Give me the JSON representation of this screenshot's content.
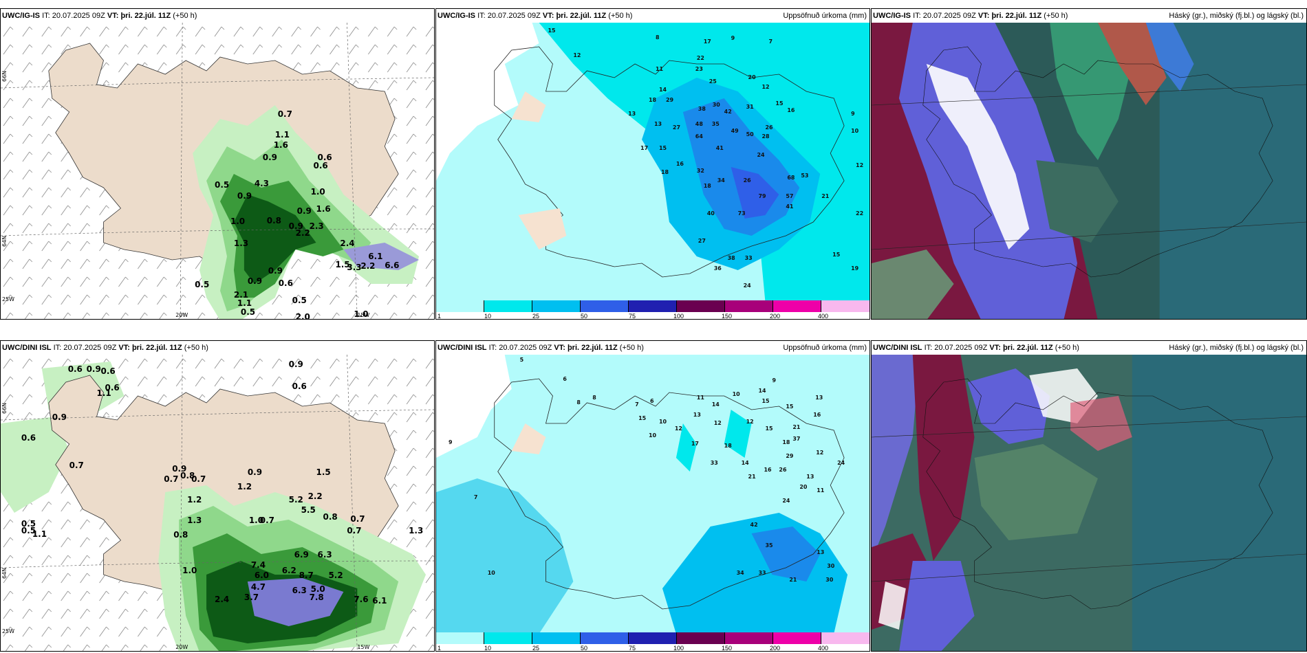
{
  "rows": [
    {
      "model": "UWC/IG-IS",
      "it_label": "IT:",
      "it_value": "20.07.2025 09Z",
      "vt_label": "VT:",
      "vt_value": "þri. 22.júl. 11Z",
      "lead": "(+50 h)"
    },
    {
      "model": "UWC/DINI ISL",
      "it_label": "IT:",
      "it_value": "20.07.2025 09Z",
      "vt_label": "VT:",
      "vt_value": "þri. 22.júl. 11Z",
      "lead": "(+50 h)"
    }
  ],
  "precip_title": "Uppsöfnuð úrkoma (mm)",
  "cloud_title": "Hásky (gr.), miðský (fj.bl.) og lágský (bl.)",
  "cloud_title_exact": "Háský (gr.), miðský (fj.bl.) og lágský (bl.)",
  "axis": {
    "lat_66": "66N",
    "lat_64": "64N",
    "lon_25": "25W",
    "lon_20": "20W",
    "lon_15": "15W"
  },
  "colorbar": {
    "ticks": [
      "1",
      "10",
      "25",
      "50",
      "75",
      "100",
      "150",
      "200",
      "400"
    ],
    "colors": [
      "#b3fbfb",
      "#00e8ec",
      "#00bff0",
      "#2f5fe8",
      "#2020b0",
      "#6a0050",
      "#a8007a",
      "#ee00a8",
      "#f8b8ee"
    ]
  },
  "wind_labels_top": [
    "0.7",
    "1.1",
    "1.6",
    "0.9",
    "0.6",
    "0.6",
    "0.5",
    "0.9",
    "4.3",
    "1.0",
    "0.9",
    "1.6",
    "0.8",
    "0.9",
    "2.3",
    "1.0",
    "1.3",
    "2.4",
    "6.1",
    "6.6",
    "1.5",
    "3.3",
    "2.2",
    "2.2",
    "0.9",
    "0.9",
    "0.6",
    "0.5",
    "0.5",
    "2.1",
    "1.1",
    "0.5",
    "2.0",
    "1.0"
  ],
  "wind_labels_bottom": [
    "0.6",
    "0.9",
    "0.6",
    "0.6",
    "1.1",
    "0.9",
    "0.6",
    "0.9",
    "0.6",
    "0.7",
    "0.9",
    "0.7",
    "0.8",
    "0.7",
    "1.2",
    "0.9",
    "1.5",
    "1.2",
    "2.2",
    "1.0",
    "0.7",
    "5.2",
    "5.5",
    "0.8",
    "0.7",
    "0.7",
    "1.3",
    "1.3",
    "0.5",
    "6.9",
    "6.3",
    "7.4",
    "6.0",
    "6.2",
    "8.7",
    "5.2",
    "4.7",
    "6.3",
    "7.8",
    "7.6",
    "6.1",
    "5.0",
    "3.7",
    "2.4",
    "1.0",
    "0.5",
    "1.1",
    "0.8"
  ],
  "precip_labels_top": [
    "15",
    "12",
    "8",
    "17",
    "9",
    "7",
    "22",
    "23",
    "11",
    "14",
    "25",
    "20",
    "12",
    "18",
    "29",
    "38",
    "30",
    "42",
    "31",
    "15",
    "16",
    "13",
    "13",
    "27",
    "48",
    "35",
    "49",
    "50",
    "26",
    "28",
    "17",
    "15",
    "64",
    "41",
    "24",
    "16",
    "18",
    "32",
    "34",
    "26",
    "68",
    "53",
    "79",
    "57",
    "41",
    "40",
    "73",
    "27",
    "38",
    "33",
    "36",
    "24",
    "21",
    "18",
    "19",
    "15",
    "22",
    "12",
    "10",
    "9"
  ],
  "precip_labels_bottom": [
    "5",
    "6",
    "8",
    "8",
    "7",
    "6",
    "11",
    "14",
    "13",
    "10",
    "14",
    "15",
    "9",
    "12",
    "12",
    "15",
    "15",
    "18",
    "21",
    "13",
    "16",
    "12",
    "29",
    "24",
    "15",
    "10",
    "10",
    "12",
    "33",
    "17",
    "18",
    "14",
    "21",
    "37",
    "16",
    "26",
    "13",
    "11",
    "20",
    "42",
    "24",
    "35",
    "34",
    "33",
    "21",
    "30",
    "30",
    "13",
    "9",
    "10",
    "7"
  ]
}
